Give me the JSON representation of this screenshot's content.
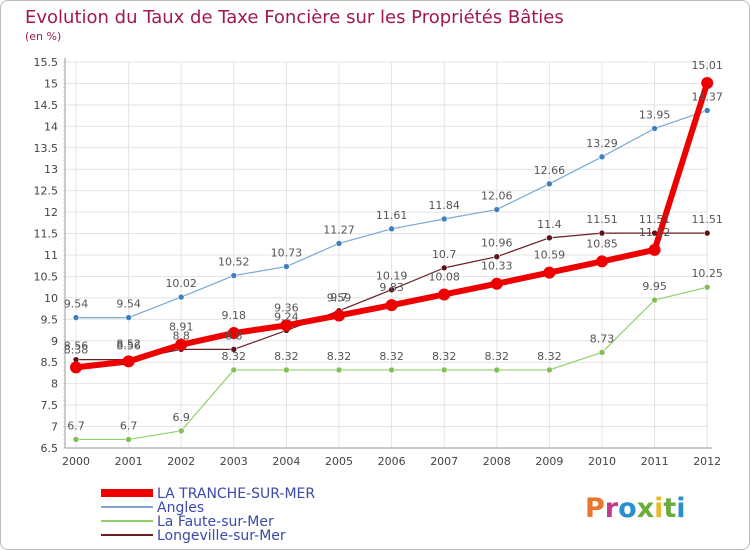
{
  "colors": {
    "title": "#a0184f",
    "axis": "#9a9a9a",
    "grid": "#e4e4e4",
    "legend_text": "#3a4aa8",
    "label_text": "#555555"
  },
  "brand": {
    "text": "Proxiti",
    "letter_colors": [
      "#e8762d",
      "#c23b8a",
      "#2b8fcf",
      "#6aac3b",
      "#e8b82d",
      "#6aac3b",
      "#2b8fcf"
    ]
  },
  "chart_data": {
    "type": "line",
    "title": "Evolution du Taux de Taxe Foncière sur les Propriétés Bâties",
    "subtitle": "(en %)",
    "x": [
      "2000",
      "2001",
      "2002",
      "2003",
      "2004",
      "2005",
      "2006",
      "2007",
      "2008",
      "2009",
      "2010",
      "2011",
      "2012"
    ],
    "ylim": [
      6.5,
      15.5
    ],
    "yticks": [
      "6.5",
      "7",
      "7.5",
      "8",
      "8.5",
      "9",
      "9.5",
      "10",
      "10.5",
      "11",
      "11.5",
      "12",
      "12.5",
      "13",
      "13.5",
      "14",
      "14.5",
      "15",
      "15.5"
    ],
    "grid": true,
    "legend_position": "bottom-left",
    "series": [
      {
        "name": "Longeville-sur-Mer",
        "color": "#6b1f24",
        "marker_color": "#5a1418",
        "width": 1.2,
        "values": [
          8.56,
          8.56,
          8.8,
          8.8,
          9.24,
          9.7,
          10.19,
          10.7,
          10.96,
          11.4,
          11.51,
          11.51,
          11.51
        ],
        "labels": [
          "8.56",
          "8.56",
          "8.8",
          "8.8",
          "9.24",
          "9.7",
          "10.19",
          "10.7",
          "10.96",
          "11.4",
          "11.51",
          "11.51",
          "11.51"
        ]
      },
      {
        "name": "La Faute-sur-Mer",
        "color": "#8fd06a",
        "marker_color": "#7ec255",
        "width": 1.2,
        "values": [
          6.7,
          6.7,
          6.9,
          8.32,
          8.32,
          8.32,
          8.32,
          8.32,
          8.32,
          8.32,
          8.73,
          9.95,
          10.25
        ],
        "labels": [
          "6.7",
          "6.7",
          "6.9",
          "8.32",
          "8.32",
          "8.32",
          "8.32",
          "8.32",
          "8.32",
          "8.32",
          "8.73",
          "9.95",
          "10.25"
        ]
      },
      {
        "name": "Angles",
        "color": "#7ba7d6",
        "marker_color": "#3f7fc0",
        "width": 1.2,
        "values": [
          9.54,
          9.54,
          10.02,
          10.52,
          10.73,
          11.27,
          11.61,
          11.84,
          12.06,
          12.66,
          13.29,
          13.95,
          14.37
        ],
        "labels": [
          "9.54",
          "9.54",
          "10.02",
          "10.52",
          "10.73",
          "11.27",
          "11.61",
          "11.84",
          "12.06",
          "12.66",
          "13.29",
          "13.95",
          "14.37"
        ]
      },
      {
        "name": "LA TRANCHE-SUR-MER",
        "color": "#ee0000",
        "marker_color": "#ee0000",
        "width": 6,
        "values": [
          8.38,
          8.52,
          8.91,
          9.18,
          9.36,
          9.59,
          9.83,
          10.08,
          10.33,
          10.59,
          10.85,
          11.12,
          15.01
        ],
        "labels": [
          "8.38",
          "8.52",
          "8.91",
          "9.18",
          "9.36",
          "9.59",
          "9.83",
          "10.08",
          "10.33",
          "10.59",
          "10.85",
          "11.12",
          "15.01"
        ]
      }
    ],
    "legend_order": [
      3,
      2,
      1,
      0
    ]
  }
}
